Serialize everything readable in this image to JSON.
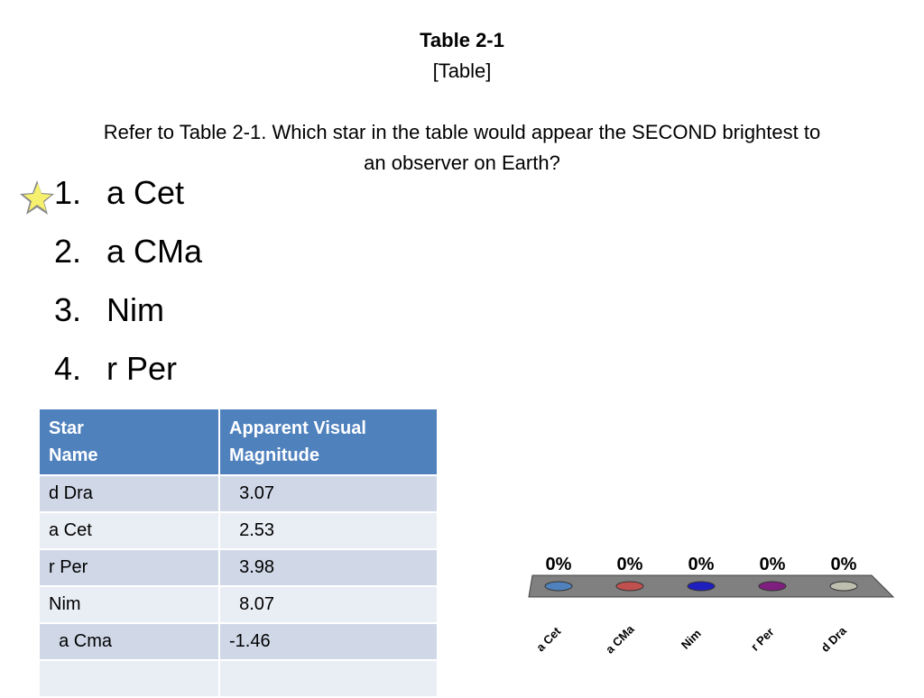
{
  "slide": {
    "title": "Table 2-1",
    "subtitle": "[Table]",
    "question": "Refer to Table 2-1. Which star in the table would appear the SECOND brightest to an observer on Earth?"
  },
  "answers": [
    {
      "num": "1.",
      "label": "a Cet"
    },
    {
      "num": "2.",
      "label": "a CMa"
    },
    {
      "num": "3.",
      "label": "Nim"
    },
    {
      "num": "4.",
      "label": "r Per"
    }
  ],
  "table": {
    "headers": [
      "Star\nName",
      "Apparent Visual\nMagnitude"
    ],
    "header1_line1": "Star",
    "header1_line2": "Name",
    "header2_line1": "Apparent Visual",
    "header2_line2": "Magnitude",
    "rows": [
      [
        "d Dra",
        "  3.07"
      ],
      [
        "a Cet",
        "  2.53"
      ],
      [
        "r Per",
        "  3.98"
      ],
      [
        "Nim",
        "  8.07"
      ],
      [
        "  a Cma",
        "-1.46"
      ],
      [
        "",
        ""
      ]
    ]
  },
  "chart_data": {
    "type": "bar",
    "categories": [
      "a Cet",
      "a CMa",
      "Nim",
      "r Per",
      "d Dra"
    ],
    "values": [
      0,
      0,
      0,
      0,
      0
    ],
    "value_labels": [
      "0%",
      "0%",
      "0%",
      "0%",
      "0%"
    ],
    "colors": [
      "#4f81bd",
      "#c0504d",
      "#1f1fbf",
      "#7f1f7f",
      "#bfbfb0"
    ],
    "base_color": "#7f7f7f",
    "title": "",
    "xlabel": "",
    "ylabel": ""
  },
  "icons": {
    "correct_marker": "star-icon"
  }
}
